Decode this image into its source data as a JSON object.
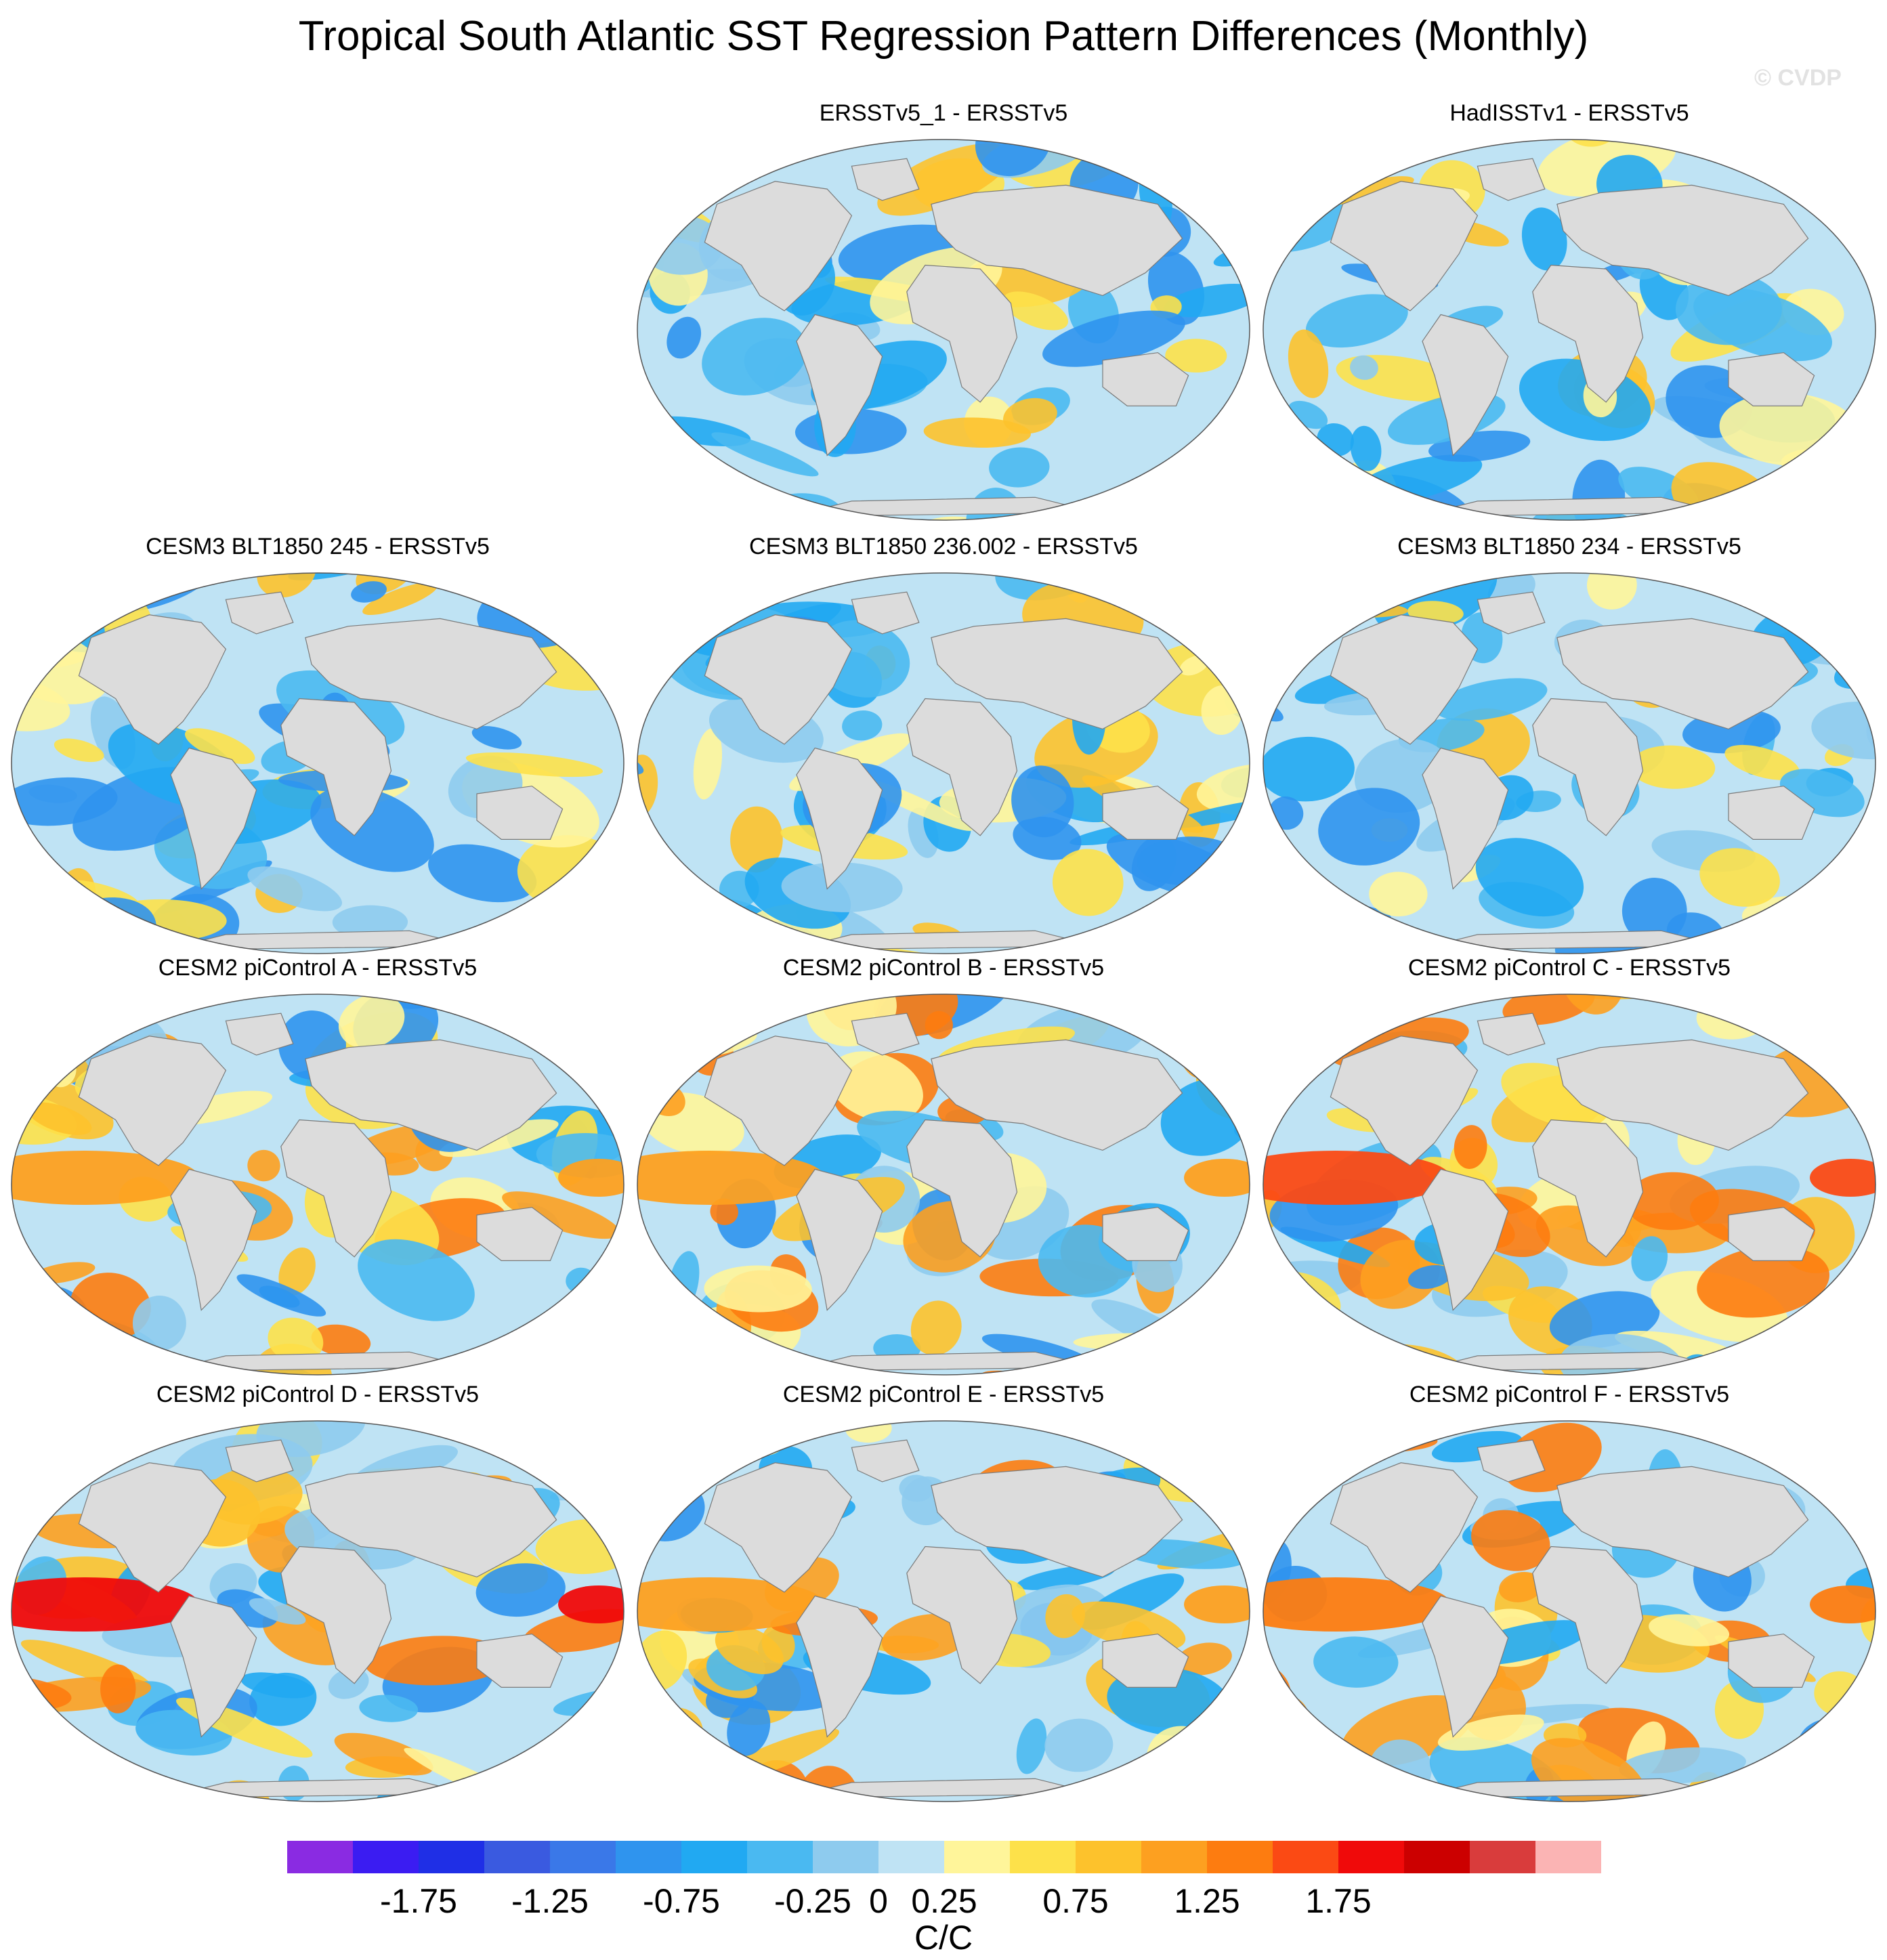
{
  "title": "Tropical South Atlantic SST Regression Pattern Differences (Monthly)",
  "watermark": "© CVDP",
  "chart_data": {
    "type": "heatmap",
    "projection": "robinson-world-map",
    "panels": [
      {
        "title": "ERSSTv5_1 - ERSSTv5"
      },
      {
        "title": "HadISSTv1 - ERSSTv5"
      },
      {
        "title": "CESM3 BLT1850 245 - ERSSTv5"
      },
      {
        "title": "CESM3 BLT1850 236.002 - ERSSTv5"
      },
      {
        "title": "CESM3 BLT1850 234 - ERSSTv5"
      },
      {
        "title": "CESM2 piControl A - ERSSTv5"
      },
      {
        "title": "CESM2 piControl B - ERSSTv5"
      },
      {
        "title": "CESM2 piControl C - ERSSTv5"
      },
      {
        "title": "CESM2 piControl D - ERSSTv5"
      },
      {
        "title": "CESM2 piControl E - ERSSTv5"
      },
      {
        "title": "CESM2 piControl F - ERSSTv5"
      }
    ],
    "colorbar": {
      "label": "C/C",
      "tick_labels": [
        "-1.75",
        "-1.25",
        "-0.75",
        "-0.25",
        "0",
        "0.25",
        "0.75",
        "1.25",
        "1.75"
      ],
      "tick_values": [
        -1.75,
        -1.25,
        -0.75,
        -0.25,
        0,
        0.25,
        0.75,
        1.25,
        1.75
      ],
      "colors": [
        "#8a2be2",
        "#3b1cf2",
        "#1f2fe6",
        "#3a5ae0",
        "#3a78e8",
        "#2f94ee",
        "#21a9f2",
        "#4ab9f1",
        "#8ecbee",
        "#bfe3f4",
        "#fff59a",
        "#fde14a",
        "#fdc22c",
        "#fda020",
        "#fd7c10",
        "#fb4a14",
        "#f00a0a",
        "#cc0000",
        "#d93c3c",
        "#fbb4b4"
      ]
    },
    "land_color": "#dcdcdc",
    "ocean_base_color": "#bfe3f4"
  }
}
